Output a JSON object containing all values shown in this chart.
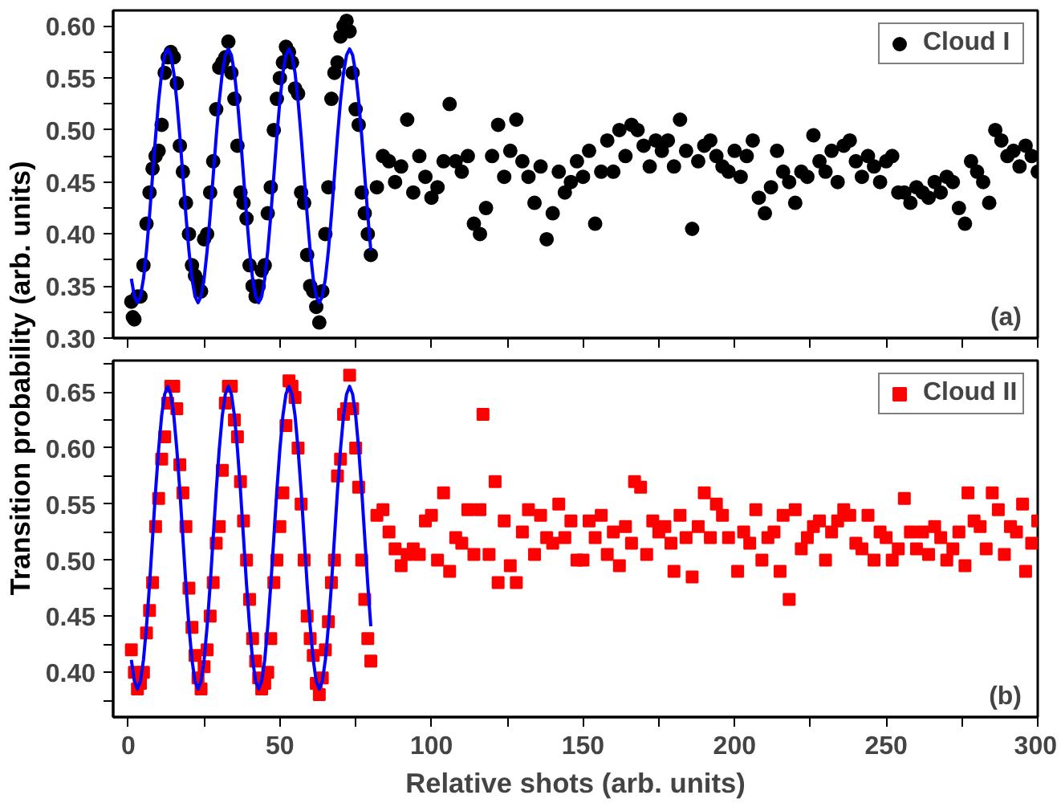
{
  "chart_data": [
    {
      "type": "scatter",
      "xlim": [
        -5,
        300
      ],
      "ylim": [
        0.3,
        0.615
      ],
      "tick_labels": "y",
      "legend": "top right",
      "grid": false,
      "annotations": [
        "(a)"
      ],
      "ylabel": "Transition probability (arb. units)",
      "xticks": [
        0,
        {
          "value": 25,
          "label": null
        },
        50,
        {
          "value": 75,
          "label": null
        },
        100,
        {
          "value": 125,
          "label": null
        },
        150,
        {
          "value": 175,
          "label": null
        },
        200,
        {
          "value": 225,
          "label": null
        },
        250,
        {
          "value": 275,
          "label": null
        },
        300
      ],
      "yticks": [
        {
          "value": 0.3,
          "label": "0.30"
        },
        {
          "value": 0.325,
          "label": null
        },
        {
          "value": 0.35,
          "label": "0.35"
        },
        {
          "value": 0.375,
          "label": null
        },
        {
          "value": 0.4,
          "label": "0.40"
        },
        {
          "value": 0.425,
          "label": null
        },
        {
          "value": 0.45,
          "label": "0.45"
        },
        {
          "value": 0.475,
          "label": null
        },
        {
          "value": 0.5,
          "label": "0.50"
        },
        {
          "value": 0.525,
          "label": null
        },
        {
          "value": 0.55,
          "label": "0.55"
        },
        {
          "value": 0.575,
          "label": null
        },
        {
          "value": 0.6,
          "label": "0.60"
        }
      ],
      "series": [
        {
          "name": "Cloud I",
          "marker": "circle",
          "color": "#000000",
          "x": [
            1,
            1.5,
            2,
            3,
            4,
            5,
            6,
            7,
            8,
            9,
            10,
            11,
            12,
            13,
            14,
            15,
            16,
            17,
            18,
            19,
            20,
            21,
            22,
            23,
            24,
            25,
            26,
            27,
            28,
            29,
            30,
            31,
            32,
            33,
            34,
            35,
            36,
            37,
            38,
            39,
            40,
            41,
            42,
            43,
            44,
            45,
            46,
            47,
            48,
            49,
            50,
            51,
            52,
            53,
            54,
            55,
            56,
            57,
            58,
            59,
            60,
            61,
            62,
            63,
            64,
            65,
            66,
            67,
            68,
            69,
            70,
            71,
            72,
            73,
            74,
            75,
            76,
            77,
            78,
            79,
            80,
            82,
            84,
            86,
            88,
            90,
            92,
            94,
            96,
            98,
            100,
            102,
            104,
            106,
            108,
            110,
            112,
            114,
            116,
            118,
            120,
            122,
            124,
            126,
            128,
            130,
            132,
            134,
            136,
            138,
            140,
            142,
            144,
            146,
            148,
            150,
            152,
            154,
            156,
            158,
            160,
            162,
            164,
            166,
            168,
            170,
            172,
            174,
            176,
            178,
            180,
            182,
            184,
            186,
            188,
            190,
            192,
            194,
            196,
            198,
            200,
            202,
            204,
            206,
            208,
            210,
            212,
            214,
            216,
            218,
            220,
            222,
            224,
            226,
            228,
            230,
            232,
            234,
            236,
            238,
            240,
            242,
            244,
            246,
            248,
            250,
            252,
            254,
            256,
            258,
            260,
            262,
            264,
            266,
            268,
            270,
            272,
            274,
            276,
            278,
            280,
            282,
            284,
            286,
            288,
            290,
            292,
            294,
            296,
            298,
            300
          ],
          "values": [
            0.335,
            0.32,
            0.318,
            0.34,
            0.34,
            0.37,
            0.41,
            0.44,
            0.463,
            0.475,
            0.48,
            0.505,
            0.555,
            0.57,
            0.575,
            0.57,
            0.545,
            0.485,
            0.46,
            0.43,
            0.4,
            0.37,
            0.36,
            0.355,
            0.345,
            0.395,
            0.4,
            0.44,
            0.47,
            0.52,
            0.56,
            0.565,
            0.57,
            0.585,
            0.555,
            0.53,
            0.485,
            0.44,
            0.43,
            0.415,
            0.37,
            0.35,
            0.34,
            0.35,
            0.365,
            0.37,
            0.42,
            0.445,
            0.5,
            0.53,
            0.55,
            0.565,
            0.58,
            0.575,
            0.565,
            0.54,
            0.535,
            0.44,
            0.43,
            0.38,
            0.35,
            0.345,
            0.33,
            0.315,
            0.345,
            0.4,
            0.445,
            0.53,
            0.555,
            0.565,
            0.59,
            0.6,
            0.605,
            0.595,
            0.555,
            0.52,
            0.505,
            0.44,
            0.42,
            0.4,
            0.38,
            0.445,
            0.475,
            0.47,
            0.45,
            0.465,
            0.51,
            0.44,
            0.475,
            0.455,
            0.435,
            0.445,
            0.47,
            0.525,
            0.47,
            0.46,
            0.475,
            0.41,
            0.4,
            0.425,
            0.475,
            0.505,
            0.455,
            0.48,
            0.51,
            0.47,
            0.455,
            0.43,
            0.465,
            0.395,
            0.42,
            0.46,
            0.44,
            0.45,
            0.47,
            0.455,
            0.48,
            0.41,
            0.46,
            0.49,
            0.46,
            0.5,
            0.475,
            0.505,
            0.5,
            0.485,
            0.465,
            0.49,
            0.48,
            0.49,
            0.465,
            0.51,
            0.48,
            0.405,
            0.47,
            0.485,
            0.49,
            0.475,
            0.465,
            0.46,
            0.48,
            0.455,
            0.475,
            0.49,
            0.435,
            0.42,
            0.445,
            0.48,
            0.46,
            0.45,
            0.43,
            0.46,
            0.455,
            0.495,
            0.47,
            0.46,
            0.48,
            0.45,
            0.485,
            0.49,
            0.47,
            0.455,
            0.475,
            0.465,
            0.45,
            0.47,
            0.475,
            0.44,
            0.44,
            0.43,
            0.445,
            0.44,
            0.435,
            0.45,
            0.44,
            0.455,
            0.45,
            0.425,
            0.41,
            0.47,
            0.46,
            0.45,
            0.43,
            0.5,
            0.49,
            0.475,
            0.48,
            0.465,
            0.485,
            0.475,
            0.46
          ]
        },
        {
          "type": "line",
          "color": "#0000ff",
          "x": [
            1,
            2,
            3,
            4,
            5,
            6,
            7,
            8,
            9,
            10,
            11,
            12,
            13,
            14,
            15,
            16,
            17,
            18,
            19,
            20,
            21,
            22,
            23,
            24,
            25,
            26,
            27,
            28,
            29,
            30,
            31,
            32,
            33,
            34,
            35,
            36,
            37,
            38,
            39,
            40,
            41,
            42,
            43,
            44,
            45,
            46,
            47,
            48,
            49,
            50,
            51,
            52,
            53,
            54,
            55,
            56,
            57,
            58,
            59,
            60,
            61,
            62,
            63,
            64,
            65,
            66,
            67,
            68,
            69,
            70,
            71,
            72,
            73,
            74,
            75,
            76,
            77,
            78,
            79,
            80
          ],
          "values": [
            0.357,
            0.34,
            0.334,
            0.34,
            0.357,
            0.384,
            0.418,
            0.456,
            0.494,
            0.528,
            0.555,
            0.572,
            0.578,
            0.572,
            0.555,
            0.528,
            0.494,
            0.456,
            0.418,
            0.384,
            0.357,
            0.34,
            0.334,
            0.34,
            0.357,
            0.384,
            0.418,
            0.456,
            0.494,
            0.528,
            0.555,
            0.572,
            0.578,
            0.572,
            0.555,
            0.528,
            0.494,
            0.456,
            0.418,
            0.384,
            0.357,
            0.34,
            0.334,
            0.34,
            0.357,
            0.384,
            0.418,
            0.456,
            0.494,
            0.528,
            0.555,
            0.572,
            0.578,
            0.572,
            0.555,
            0.528,
            0.494,
            0.456,
            0.418,
            0.384,
            0.357,
            0.34,
            0.334,
            0.34,
            0.357,
            0.384,
            0.418,
            0.456,
            0.494,
            0.528,
            0.555,
            0.572,
            0.578,
            0.572,
            0.555,
            0.528,
            0.494,
            0.456,
            0.418,
            0.384
          ]
        }
      ]
    },
    {
      "type": "scatter",
      "xlim": [
        -5,
        300
      ],
      "ylim": [
        0.36,
        0.678
      ],
      "legend": "top right",
      "grid": false,
      "annotations": [
        "(b)"
      ],
      "xlabel": "Relative shots (arb. units)",
      "xticks": [
        0,
        {
          "value": 25,
          "label": null
        },
        50,
        {
          "value": 75,
          "label": null
        },
        100,
        {
          "value": 125,
          "label": null
        },
        150,
        {
          "value": 175,
          "label": null
        },
        200,
        {
          "value": 225,
          "label": null
        },
        250,
        {
          "value": 275,
          "label": null
        },
        300
      ],
      "yticks": [
        {
          "value": 0.375,
          "label": null
        },
        {
          "value": 0.4,
          "label": "0.40"
        },
        {
          "value": 0.425,
          "label": null
        },
        {
          "value": 0.45,
          "label": "0.45"
        },
        {
          "value": 0.475,
          "label": null
        },
        {
          "value": 0.5,
          "label": "0.50"
        },
        {
          "value": 0.525,
          "label": null
        },
        {
          "value": 0.55,
          "label": "0.55"
        },
        {
          "value": 0.575,
          "label": null
        },
        {
          "value": 0.6,
          "label": "0.60"
        },
        {
          "value": 0.625,
          "label": null
        },
        {
          "value": 0.65,
          "label": "0.65"
        },
        {
          "value": 0.675,
          "label": null
        }
      ],
      "series": [
        {
          "name": "Cloud II",
          "marker": "square",
          "color": "#ff0000",
          "x": [
            1,
            2,
            3,
            4,
            5,
            6,
            7,
            8,
            9,
            10,
            11,
            12,
            13,
            14,
            15,
            16,
            17,
            18,
            19,
            20,
            21,
            22,
            23,
            24,
            25,
            26,
            27,
            28,
            29,
            30,
            31,
            32,
            33,
            34,
            35,
            36,
            37,
            38,
            39,
            40,
            41,
            42,
            43,
            44,
            45,
            46,
            47,
            48,
            49,
            50,
            51,
            52,
            53,
            54,
            55,
            56,
            57,
            58,
            59,
            60,
            61,
            62,
            63,
            64,
            65,
            66,
            67,
            68,
            69,
            70,
            71,
            72,
            73,
            74,
            75,
            76,
            77,
            78,
            79,
            80,
            82,
            84,
            86,
            88,
            90,
            92,
            94,
            96,
            98,
            100,
            102,
            104,
            106,
            108,
            110,
            112,
            114,
            116,
            117,
            119,
            121,
            122,
            124,
            126,
            128,
            130,
            132,
            134,
            136,
            138,
            140,
            142,
            144,
            146,
            148,
            150,
            152,
            154,
            156,
            158,
            160,
            162,
            164,
            166,
            167,
            169,
            171,
            173,
            175,
            177,
            179,
            180,
            182,
            184,
            186,
            188,
            190,
            192,
            194,
            196,
            198,
            201,
            203,
            205,
            207,
            209,
            211,
            213,
            215,
            216,
            218,
            220,
            222,
            224,
            226,
            228,
            230,
            232,
            234,
            236,
            238,
            240,
            242,
            244,
            246,
            248,
            250,
            252,
            254,
            256,
            258,
            260,
            262,
            264,
            266,
            268,
            270,
            272,
            274,
            276,
            277,
            279,
            281,
            283,
            285,
            287,
            289,
            291,
            293,
            295,
            296,
            298,
            300
          ],
          "values": [
            0.42,
            0.4,
            0.385,
            0.39,
            0.4,
            0.435,
            0.455,
            0.48,
            0.53,
            0.555,
            0.59,
            0.61,
            0.64,
            0.655,
            0.655,
            0.635,
            0.585,
            0.56,
            0.53,
            0.475,
            0.44,
            0.415,
            0.395,
            0.385,
            0.405,
            0.42,
            0.45,
            0.48,
            0.515,
            0.53,
            0.58,
            0.64,
            0.655,
            0.655,
            0.625,
            0.61,
            0.57,
            0.535,
            0.5,
            0.465,
            0.43,
            0.41,
            0.395,
            0.385,
            0.39,
            0.4,
            0.43,
            0.48,
            0.5,
            0.53,
            0.56,
            0.62,
            0.66,
            0.655,
            0.645,
            0.6,
            0.55,
            0.5,
            0.45,
            0.43,
            0.415,
            0.39,
            0.38,
            0.395,
            0.42,
            0.445,
            0.48,
            0.5,
            0.575,
            0.59,
            0.63,
            0.635,
            0.665,
            0.635,
            0.6,
            0.565,
            0.5,
            0.465,
            0.43,
            0.41,
            0.54,
            0.545,
            0.525,
            0.51,
            0.495,
            0.505,
            0.51,
            0.505,
            0.535,
            0.54,
            0.5,
            0.56,
            0.49,
            0.52,
            0.515,
            0.545,
            0.505,
            0.545,
            0.63,
            0.505,
            0.57,
            0.48,
            0.535,
            0.495,
            0.48,
            0.525,
            0.545,
            0.505,
            0.54,
            0.52,
            0.515,
            0.55,
            0.52,
            0.535,
            0.5,
            0.5,
            0.535,
            0.52,
            0.54,
            0.505,
            0.525,
            0.495,
            0.53,
            0.515,
            0.57,
            0.565,
            0.505,
            0.535,
            0.525,
            0.53,
            0.515,
            0.49,
            0.54,
            0.52,
            0.485,
            0.53,
            0.56,
            0.52,
            0.55,
            0.54,
            0.52,
            0.49,
            0.525,
            0.515,
            0.545,
            0.5,
            0.52,
            0.525,
            0.49,
            0.54,
            0.465,
            0.545,
            0.51,
            0.52,
            0.53,
            0.535,
            0.5,
            0.525,
            0.535,
            0.545,
            0.54,
            0.515,
            0.51,
            0.54,
            0.5,
            0.525,
            0.52,
            0.5,
            0.51,
            0.555,
            0.525,
            0.51,
            0.525,
            0.505,
            0.53,
            0.52,
            0.5,
            0.51,
            0.525,
            0.495,
            0.56,
            0.535,
            0.53,
            0.51,
            0.56,
            0.545,
            0.505,
            0.53,
            0.525,
            0.55,
            0.49,
            0.515,
            0.535
          ]
        },
        {
          "type": "line",
          "color": "#0000ff",
          "x": [
            1,
            2,
            3,
            4,
            5,
            6,
            7,
            8,
            9,
            10,
            11,
            12,
            13,
            14,
            15,
            16,
            17,
            18,
            19,
            20,
            21,
            22,
            23,
            24,
            25,
            26,
            27,
            28,
            29,
            30,
            31,
            32,
            33,
            34,
            35,
            36,
            37,
            38,
            39,
            40,
            41,
            42,
            43,
            44,
            45,
            46,
            47,
            48,
            49,
            50,
            51,
            52,
            53,
            54,
            55,
            56,
            57,
            58,
            59,
            60,
            61,
            62,
            63,
            64,
            65,
            66,
            67,
            68,
            69,
            70,
            71,
            72,
            73,
            74,
            75,
            76,
            77,
            78,
            79,
            80
          ],
          "values": [
            0.411,
            0.392,
            0.385,
            0.392,
            0.411,
            0.441,
            0.478,
            0.52,
            0.562,
            0.599,
            0.629,
            0.648,
            0.655,
            0.648,
            0.629,
            0.599,
            0.562,
            0.52,
            0.478,
            0.441,
            0.411,
            0.392,
            0.385,
            0.392,
            0.411,
            0.441,
            0.478,
            0.52,
            0.562,
            0.599,
            0.629,
            0.648,
            0.655,
            0.648,
            0.629,
            0.599,
            0.562,
            0.52,
            0.478,
            0.441,
            0.411,
            0.392,
            0.385,
            0.392,
            0.411,
            0.441,
            0.478,
            0.52,
            0.562,
            0.599,
            0.629,
            0.648,
            0.655,
            0.648,
            0.629,
            0.599,
            0.562,
            0.52,
            0.478,
            0.441,
            0.411,
            0.392,
            0.385,
            0.392,
            0.411,
            0.441,
            0.478,
            0.52,
            0.562,
            0.599,
            0.629,
            0.648,
            0.655,
            0.648,
            0.629,
            0.599,
            0.562,
            0.52,
            0.478,
            0.441
          ]
        }
      ]
    }
  ]
}
